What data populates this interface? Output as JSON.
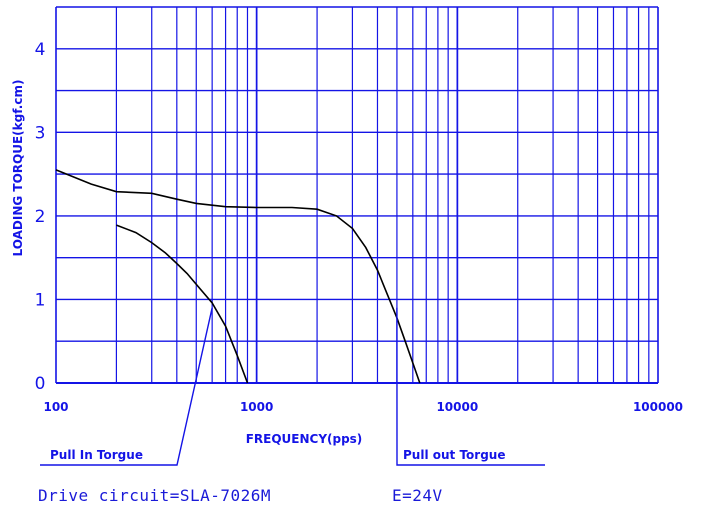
{
  "chart_data": {
    "type": "line",
    "x_scale": "log",
    "xlim": [
      100,
      100000
    ],
    "ylim": [
      0,
      4.5
    ],
    "xlabel": "FREQUENCY(pps)",
    "ylabel": "LOADING TORQUE(kgf.cm)",
    "x_tick_labels": [
      "100",
      "1000",
      "10000",
      "100000"
    ],
    "x_ticks": [
      100,
      1000,
      10000,
      100000
    ],
    "y_tick_labels": [
      "0",
      "1",
      "2",
      "3",
      "4"
    ],
    "y_ticks": [
      0,
      1,
      2,
      3,
      4
    ],
    "grid": true,
    "series": [
      {
        "name": "Pull out Torgue",
        "points": [
          [
            100,
            2.55
          ],
          [
            150,
            2.38
          ],
          [
            200,
            2.29
          ],
          [
            300,
            2.27
          ],
          [
            400,
            2.2
          ],
          [
            500,
            2.15
          ],
          [
            700,
            2.11
          ],
          [
            1000,
            2.1
          ],
          [
            1500,
            2.1
          ],
          [
            2000,
            2.08
          ],
          [
            2500,
            2.0
          ],
          [
            3000,
            1.85
          ],
          [
            3500,
            1.62
          ],
          [
            4000,
            1.35
          ],
          [
            4500,
            1.05
          ],
          [
            5000,
            0.78
          ],
          [
            5500,
            0.5
          ],
          [
            6000,
            0.24
          ],
          [
            6500,
            0.0
          ]
        ]
      },
      {
        "name": "Pull In Torgue",
        "points": [
          [
            200,
            1.89
          ],
          [
            250,
            1.8
          ],
          [
            300,
            1.68
          ],
          [
            350,
            1.56
          ],
          [
            400,
            1.43
          ],
          [
            450,
            1.31
          ],
          [
            500,
            1.18
          ],
          [
            600,
            0.96
          ],
          [
            700,
            0.68
          ],
          [
            800,
            0.33
          ],
          [
            900,
            0.0
          ]
        ]
      }
    ],
    "annotations": [
      {
        "text": "Pull In Torgue",
        "x": 600,
        "y": 0.9
      },
      {
        "text": "Pull out Torgue",
        "x": 5000,
        "y": 0.9
      }
    ]
  },
  "footer": {
    "drive_circuit": "Drive circuit=SLA-7026M",
    "voltage": "E=24V"
  },
  "colors": {
    "grid": "#1414e6",
    "curve": "#000000",
    "text": "#1414e6"
  }
}
